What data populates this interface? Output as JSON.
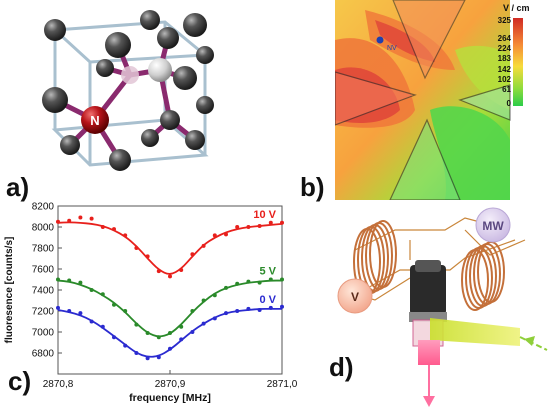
{
  "figure": {
    "panel_labels": [
      "a)",
      "b)",
      "c)",
      "d)"
    ]
  },
  "panel_a": {
    "n_atom_label": "N",
    "colors": {
      "carbon": "#3a3a3a",
      "nitrogen": "#c0161b",
      "vacancy": "#d8d8d8",
      "bond": "#8a2a6e",
      "cube": "#9fb7c9"
    }
  },
  "panel_b": {
    "unit_label": "V / cm",
    "colorbar_ticks": [
      "325",
      "264",
      "224",
      "183",
      "142",
      "102",
      "61",
      "0"
    ],
    "nv_label": "NV",
    "colors": {
      "high": "#d7352b",
      "mid": "#f59a3b",
      "low": "#33cc44"
    }
  },
  "panel_d": {
    "mw_label": "MW",
    "v_label": "V",
    "colors": {
      "coil": "#c9763a",
      "laser_out": "#ff6fa0",
      "laser_in": "#d8e83a"
    }
  },
  "chart_data": {
    "type": "line",
    "xlabel": "frequency [MHz]",
    "ylabel": "fluoresence [counts/s]",
    "xlim": [
      2870.8,
      2871.0
    ],
    "ylim": [
      6600,
      8200
    ],
    "xticks": [
      "2870,8",
      "2870,9",
      "2871,0"
    ],
    "yticks": [
      "6800",
      "7000",
      "7200",
      "7400",
      "7600",
      "7800",
      "8000",
      "8200"
    ],
    "series": [
      {
        "name": "10 V",
        "color": "#e8201c",
        "x": [
          2870.8,
          2870.81,
          2870.82,
          2870.83,
          2870.84,
          2870.85,
          2870.86,
          2870.87,
          2870.88,
          2870.89,
          2870.9,
          2870.91,
          2870.92,
          2870.93,
          2870.94,
          2870.95,
          2870.96,
          2870.97,
          2870.98,
          2870.99,
          2871.0
        ],
        "fit": [
          8040,
          8045,
          8040,
          8030,
          8010,
          7970,
          7910,
          7820,
          7700,
          7590,
          7540,
          7600,
          7720,
          7830,
          7900,
          7950,
          7980,
          8000,
          8010,
          8020,
          8030
        ],
        "points": [
          8050,
          8060,
          8090,
          8080,
          8000,
          7980,
          7920,
          7800,
          7720,
          7580,
          7530,
          7590,
          7740,
          7820,
          7920,
          7930,
          8000,
          8000,
          8010,
          8040,
          8040
        ]
      },
      {
        "name": "5 V",
        "color": "#2a8a2a",
        "x": [
          2870.8,
          2870.81,
          2870.82,
          2870.83,
          2870.84,
          2870.85,
          2870.86,
          2870.87,
          2870.88,
          2870.89,
          2870.9,
          2870.91,
          2870.92,
          2870.93,
          2870.94,
          2870.95,
          2870.96,
          2870.97,
          2870.98,
          2870.99,
          2871.0
        ],
        "fit": [
          7490,
          7480,
          7450,
          7410,
          7350,
          7280,
          7190,
          7080,
          6990,
          6950,
          6980,
          7070,
          7190,
          7290,
          7370,
          7420,
          7450,
          7470,
          7480,
          7490,
          7490
        ],
        "points": [
          7500,
          7490,
          7470,
          7400,
          7360,
          7260,
          7200,
          7070,
          6990,
          6950,
          6990,
          7050,
          7200,
          7300,
          7350,
          7420,
          7460,
          7480,
          7470,
          7500,
          7500
        ]
      },
      {
        "name": "0 V",
        "color": "#2b2bd0",
        "x": [
          2870.8,
          2870.81,
          2870.82,
          2870.83,
          2870.84,
          2870.85,
          2870.86,
          2870.87,
          2870.88,
          2870.89,
          2870.9,
          2870.91,
          2870.92,
          2870.93,
          2870.94,
          2870.95,
          2870.96,
          2870.97,
          2870.98,
          2870.99,
          2871.0
        ],
        "fit": [
          7210,
          7190,
          7160,
          7110,
          7040,
          6960,
          6880,
          6800,
          6760,
          6770,
          6830,
          6920,
          7010,
          7080,
          7140,
          7180,
          7200,
          7210,
          7220,
          7220,
          7220
        ],
        "points": [
          7230,
          7200,
          7180,
          7100,
          7050,
          6950,
          6870,
          6800,
          6750,
          6760,
          6840,
          6930,
          7000,
          7080,
          7130,
          7180,
          7200,
          7220,
          7210,
          7230,
          7240
        ]
      }
    ]
  }
}
